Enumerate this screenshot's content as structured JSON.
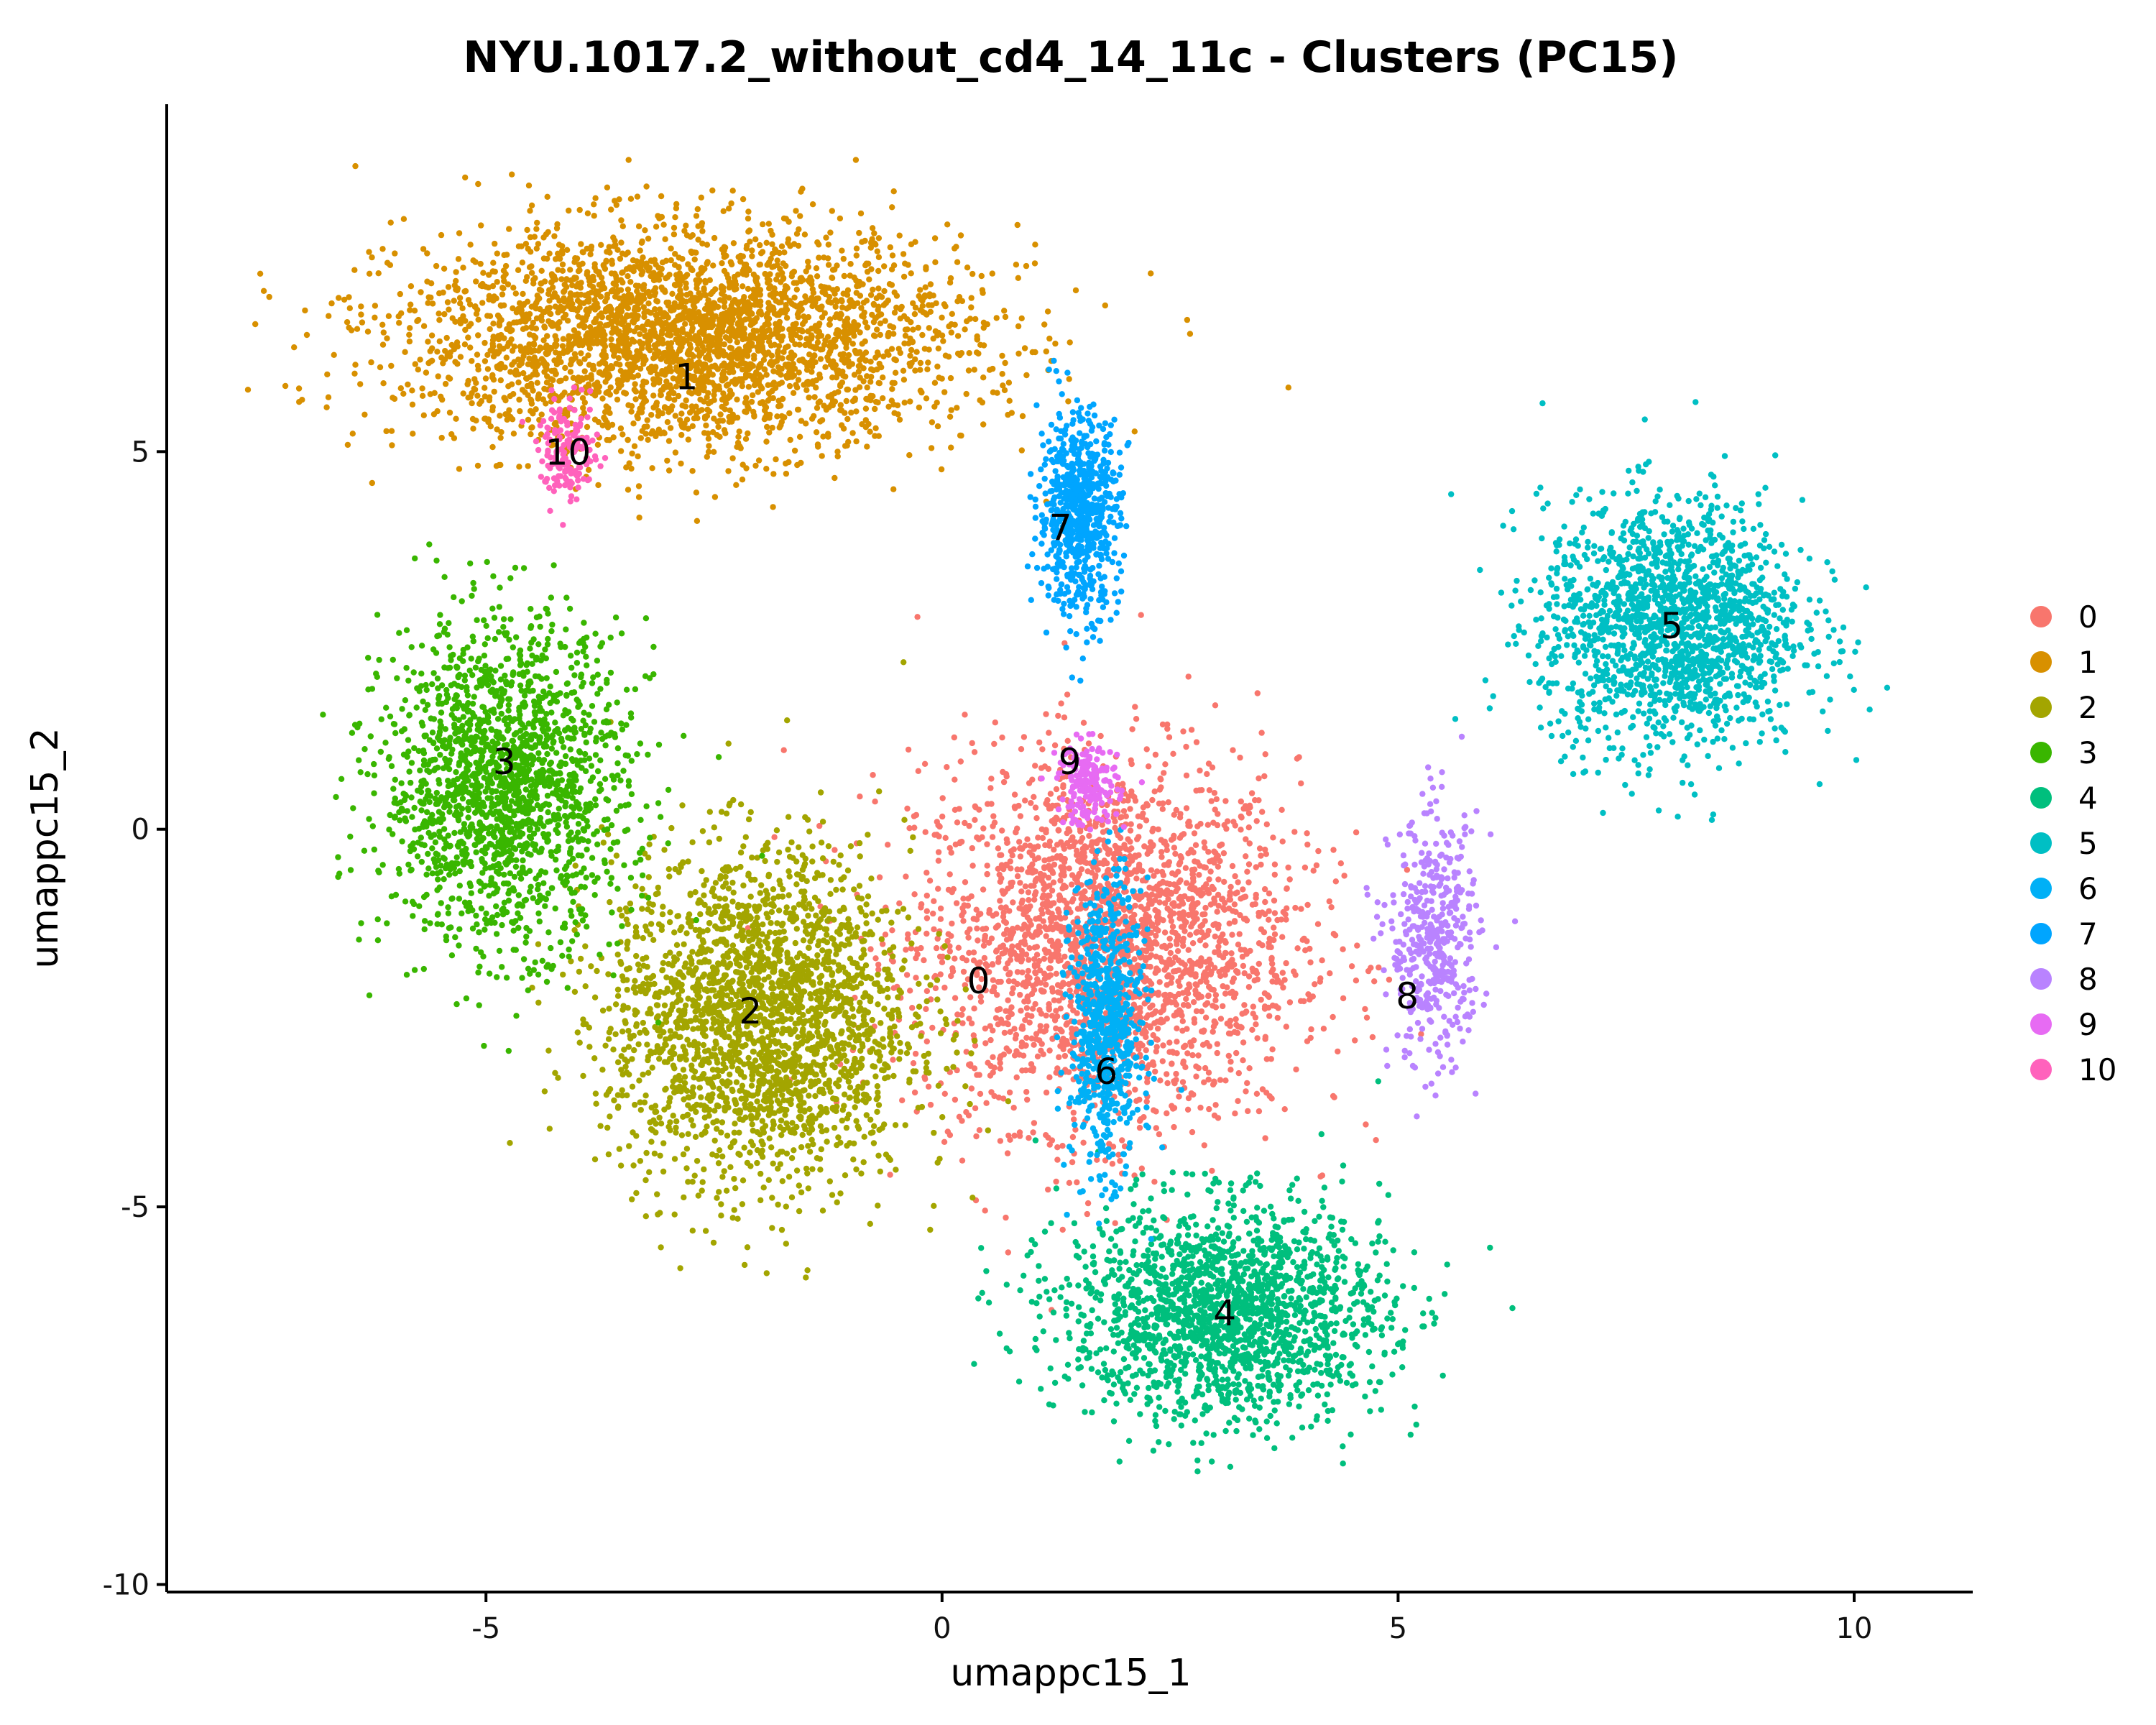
{
  "chart_data": {
    "type": "scatter",
    "title": "NYU.1017.2_without_cd4_14_11c - Clusters (PC15)",
    "xlabel": "umappc15_1",
    "ylabel": "umappc15_2",
    "xlim": [
      -8.5,
      11.3
    ],
    "ylim": [
      -10.1,
      9.6
    ],
    "x_ticks": [
      -5,
      0,
      5,
      10
    ],
    "x_tick_labels": [
      "-5",
      "0",
      "5",
      "10"
    ],
    "y_ticks": [
      -10,
      -5,
      0,
      5
    ],
    "y_tick_labels": [
      "-10",
      "-5",
      "0",
      "5"
    ],
    "grid": false,
    "legend_position": "right",
    "clusters": [
      {
        "name": "0",
        "color": "#F8766D",
        "label_pos": [
          0.4,
          -2.0
        ],
        "center": [
          1.8,
          -1.5
        ],
        "spread": [
          1.9,
          2.2
        ]
      },
      {
        "name": "1",
        "color": "#D89000",
        "label_pos": [
          -2.8,
          6.0
        ],
        "center": [
          -2.8,
          6.5
        ],
        "spread": [
          2.8,
          1.3
        ]
      },
      {
        "name": "2",
        "color": "#A3A500",
        "label_pos": [
          -2.1,
          -2.4
        ],
        "center": [
          -2.0,
          -2.5
        ],
        "spread": [
          1.5,
          2.0
        ]
      },
      {
        "name": "3",
        "color": "#39B600",
        "label_pos": [
          -4.8,
          0.9
        ],
        "center": [
          -4.8,
          0.6
        ],
        "spread": [
          1.2,
          1.9
        ]
      },
      {
        "name": "4",
        "color": "#00BF7D",
        "label_pos": [
          3.1,
          -6.4
        ],
        "center": [
          3.1,
          -6.4
        ],
        "spread": [
          1.6,
          1.3
        ]
      },
      {
        "name": "5",
        "color": "#00BFC4",
        "label_pos": [
          8.0,
          2.7
        ],
        "center": [
          8.0,
          2.7
        ],
        "spread": [
          1.3,
          1.5
        ]
      },
      {
        "name": "6",
        "color": "#00B0F6",
        "label_pos": [
          1.8,
          -3.2
        ],
        "center": [
          1.8,
          -2.6
        ],
        "spread": [
          0.35,
          1.7
        ]
      },
      {
        "name": "7",
        "color": "#00A5FF",
        "label_pos": [
          1.3,
          4.0
        ],
        "center": [
          1.5,
          4.2
        ],
        "spread": [
          0.4,
          1.2
        ]
      },
      {
        "name": "8",
        "color": "#B983FF",
        "label_pos": [
          5.1,
          -2.2
        ],
        "center": [
          5.4,
          -1.5
        ],
        "spread": [
          0.45,
          1.5
        ]
      },
      {
        "name": "9",
        "color": "#E76BF3",
        "label_pos": [
          1.4,
          0.9
        ],
        "center": [
          1.6,
          0.6
        ],
        "spread": [
          0.3,
          0.5
        ]
      },
      {
        "name": "10",
        "color": "#FF62BC",
        "label_pos": [
          -4.1,
          5.0
        ],
        "center": [
          -4.1,
          5.0
        ],
        "spread": [
          0.3,
          0.6
        ]
      }
    ]
  }
}
